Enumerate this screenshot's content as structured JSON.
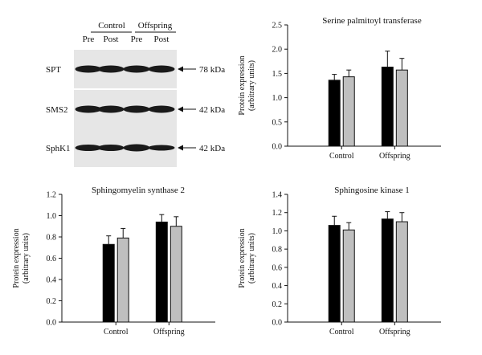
{
  "blot": {
    "groups": [
      "Control",
      "Offspring"
    ],
    "timepoints": [
      "Pre",
      "Post",
      "Pre",
      "Post"
    ],
    "rows": [
      {
        "label": "SPT",
        "size": "78 kDa"
      },
      {
        "label": "SMS2",
        "size": "42 kDa"
      },
      {
        "label": "SphK1",
        "size": "42 kDa"
      }
    ],
    "band_color": "#1a1a1a",
    "panel_color": "#e6e6e6"
  },
  "colors": {
    "pre": "#000000",
    "post": "#bfbfbf"
  },
  "chart_data": [
    {
      "type": "bar",
      "title": "Serine palmitoyl transferase",
      "ylabel": "Protein expression (arbitrary units)",
      "ylabel_lines": [
        "Protein expression",
        "(arbitrary units)"
      ],
      "categories": [
        "Control",
        "Offspring"
      ],
      "ylim": [
        0,
        2.5
      ],
      "yticks": [
        "0.0",
        "0.5",
        "1.0",
        "1.5",
        "2.0",
        "2.5"
      ],
      "series": [
        {
          "values": [
            1.36,
            1.63
          ],
          "errors": [
            0.12,
            0.33
          ]
        },
        {
          "values": [
            1.43,
            1.57
          ],
          "errors": [
            0.14,
            0.24
          ]
        }
      ]
    },
    {
      "type": "bar",
      "title": "Sphingomyelin synthase 2",
      "ylabel": "Protein expression (arbitrary units)",
      "ylabel_lines": [
        "Protein expression",
        "(arbitrary units)"
      ],
      "categories": [
        "Control",
        "Offspring"
      ],
      "ylim": [
        0,
        1.2
      ],
      "yticks": [
        "0.0",
        "0.2",
        "0.4",
        "0.6",
        "0.8",
        "1.0",
        "1.2"
      ],
      "series": [
        {
          "values": [
            0.73,
            0.94
          ],
          "errors": [
            0.08,
            0.07
          ]
        },
        {
          "values": [
            0.79,
            0.9
          ],
          "errors": [
            0.09,
            0.09
          ]
        }
      ]
    },
    {
      "type": "bar",
      "title": "Sphingosine kinase 1",
      "ylabel": "Protein expression (arbitrary units)",
      "ylabel_lines": [
        "Protein expression",
        "(arbitrary units)"
      ],
      "categories": [
        "Control",
        "Offspring"
      ],
      "ylim": [
        0,
        1.4
      ],
      "yticks": [
        "0.0",
        "0.2",
        "0.4",
        "0.6",
        "0.8",
        "1.0",
        "1.2",
        "1.4"
      ],
      "series": [
        {
          "values": [
            1.06,
            1.13
          ],
          "errors": [
            0.1,
            0.08
          ]
        },
        {
          "values": [
            1.01,
            1.1
          ],
          "errors": [
            0.08,
            0.1
          ]
        }
      ]
    }
  ]
}
